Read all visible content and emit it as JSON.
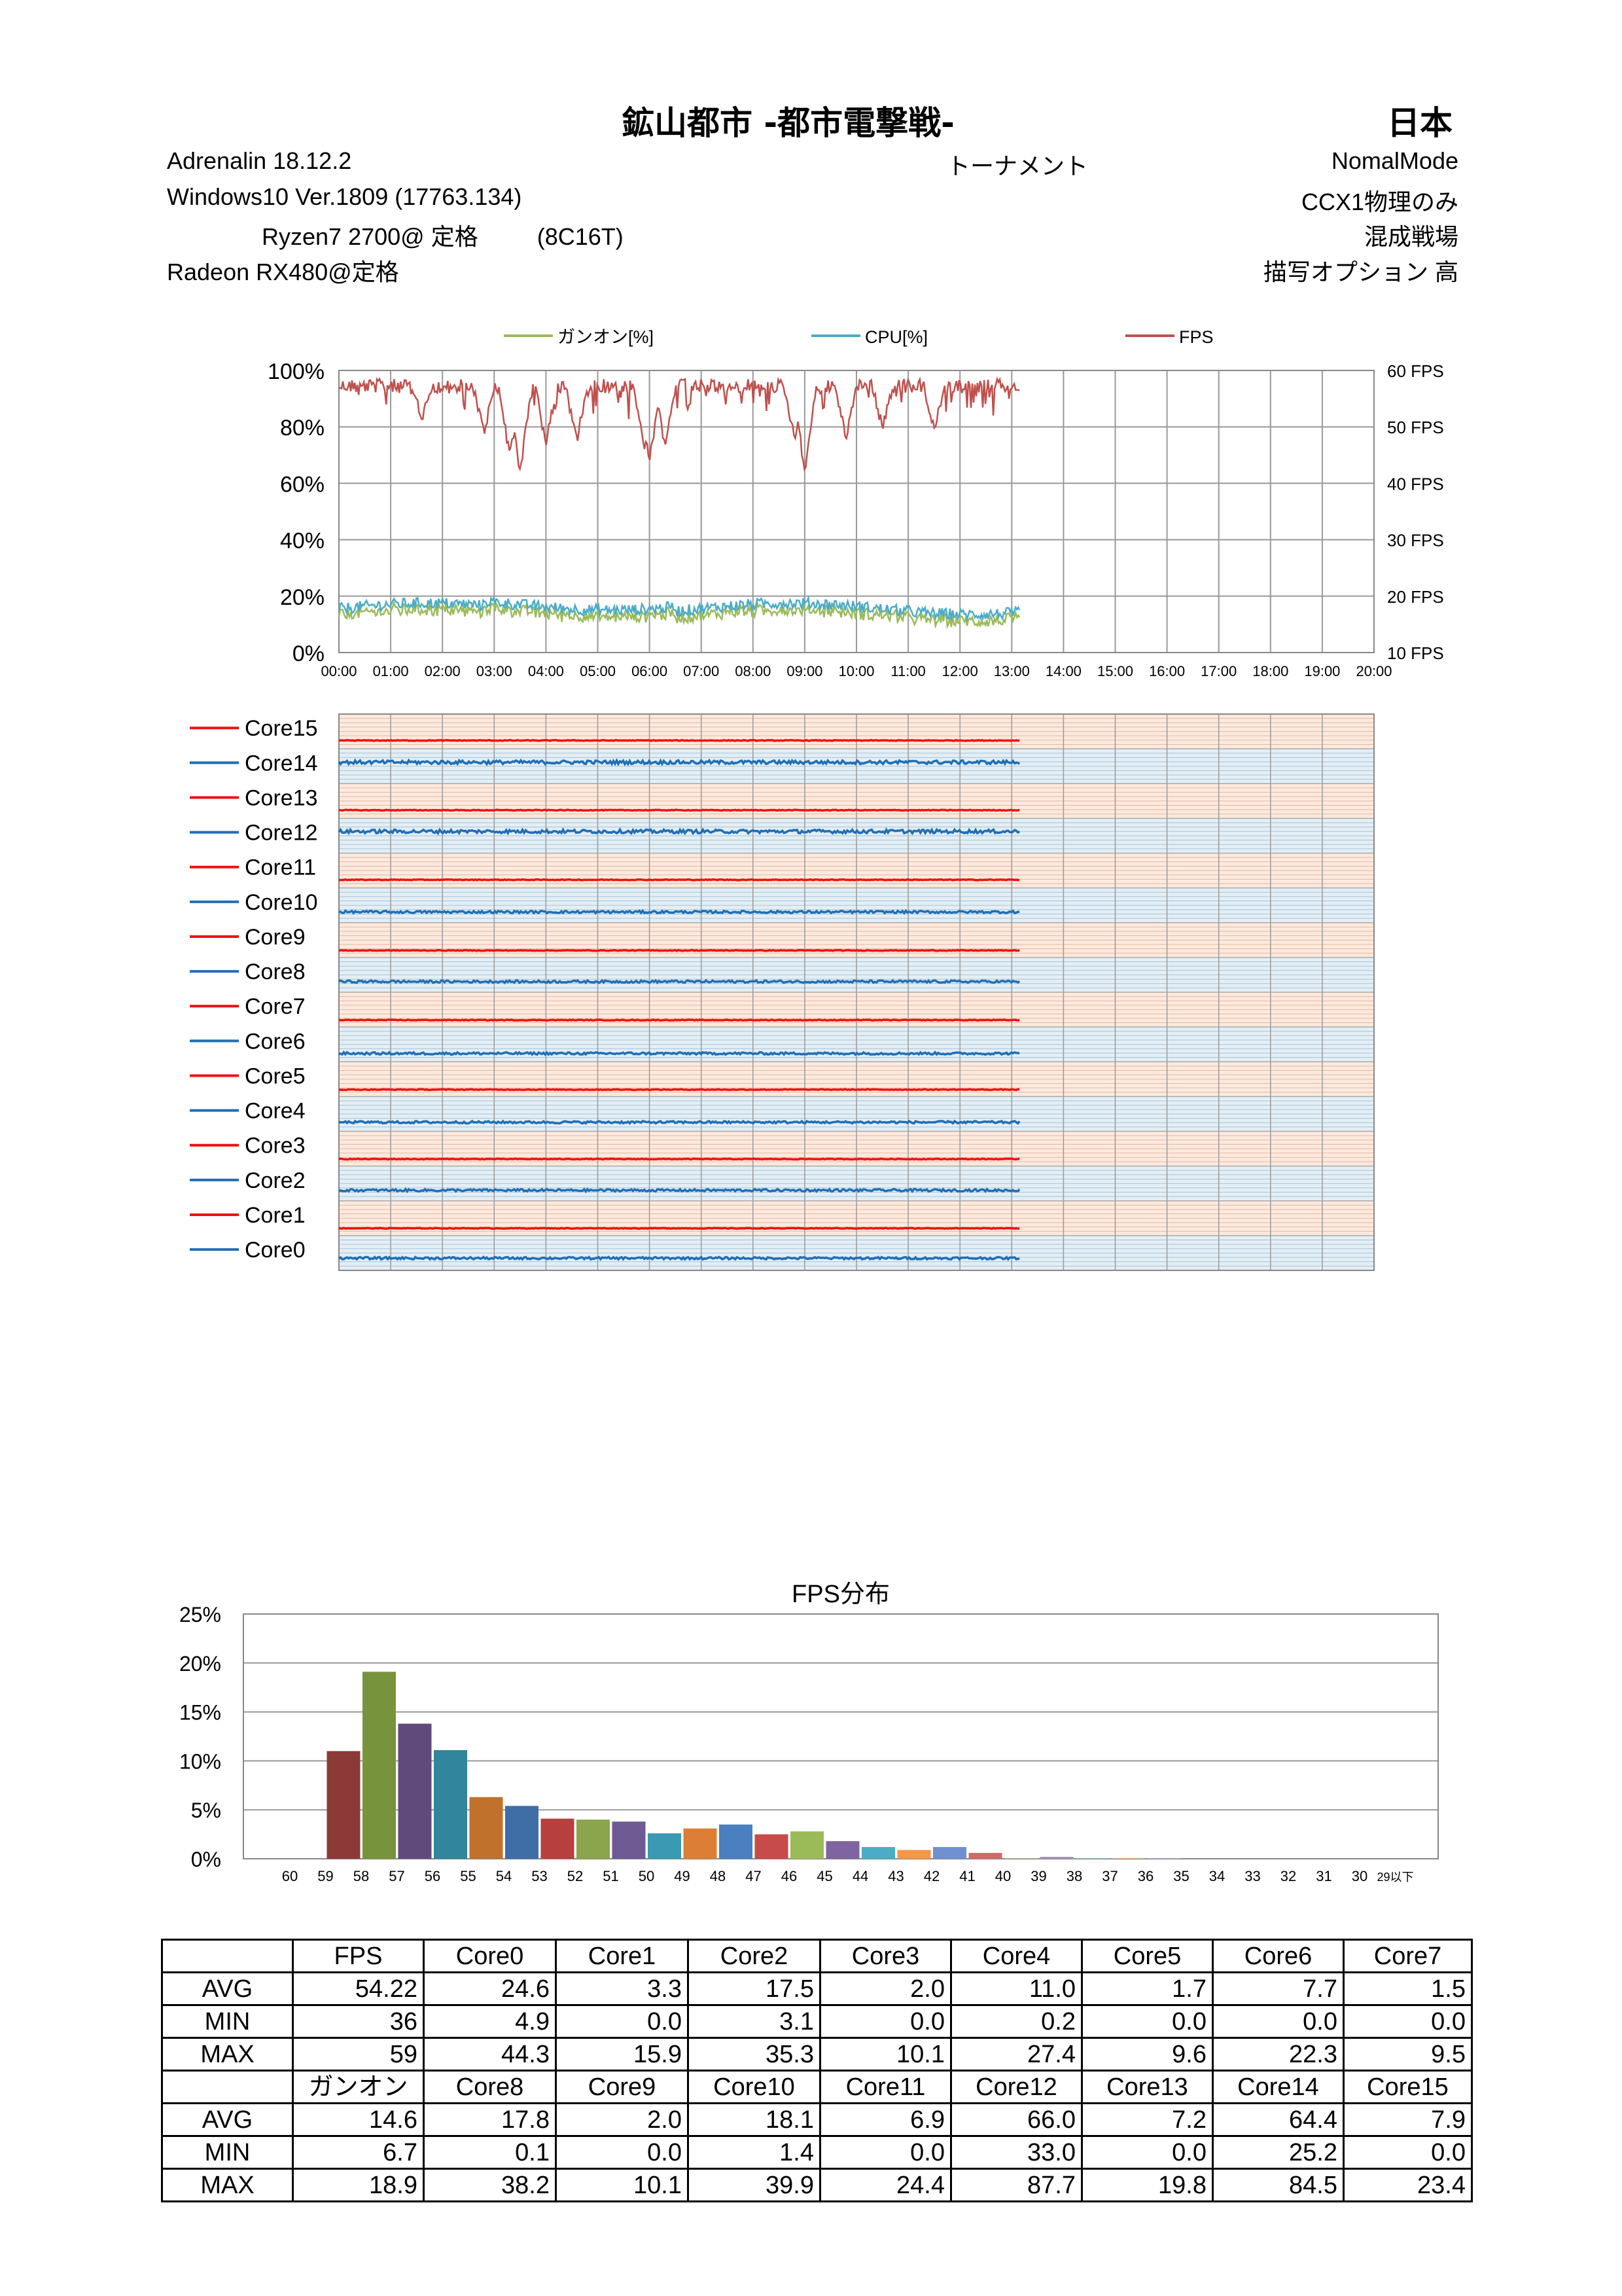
{
  "header": {
    "title": "鉱山都市 -都市電撃戦-",
    "region": "日本",
    "driver": "Adrenalin  18.12.2",
    "mode_type": "トーナメント",
    "mode": "NomalMode",
    "os": "Windows10  Ver.1809 (17763.134)",
    "ccx": "CCX1物理のみ",
    "cpu": "Ryzen7 2700@ 定格         (8C16T)",
    "battlefield": "混成戦場",
    "gpu": "Radeon RX480@定格",
    "quality": "描写オプション  高"
  },
  "colors": {
    "ganon": "#9bbb59",
    "cpu": "#4bacc6",
    "fps": "#c0504d",
    "core_red": "#ee1111",
    "core_blue": "#1f6fb5",
    "band_red": "#fce9de",
    "band_blue": "#e3eef5"
  },
  "chart_data": [
    {
      "type": "line",
      "legend": [
        "ガンオン[%]",
        "CPU[%]",
        "FPS"
      ],
      "x_ticks": [
        "00:00",
        "01:00",
        "02:00",
        "03:00",
        "04:00",
        "05:00",
        "06:00",
        "07:00",
        "08:00",
        "09:00",
        "10:00",
        "11:00",
        "12:00",
        "13:00",
        "14:00",
        "15:00",
        "16:00",
        "17:00",
        "18:00",
        "19:00",
        "20:00"
      ],
      "y_left_ticks": [
        "100%",
        "80%",
        "60%",
        "40%",
        "20%",
        "0%"
      ],
      "y_right_ticks": [
        "60 FPS",
        "50 FPS",
        "40 FPS",
        "30 FPS",
        "20 FPS",
        "10 FPS"
      ],
      "ylim_left": [
        0,
        100
      ],
      "ylim_right": [
        10,
        60
      ],
      "x_range_minutes": [
        0,
        20
      ],
      "data_end_minutes": 13.15,
      "series": [
        {
          "name": "ガンオン[%]",
          "axis": "left",
          "avg": 14.6,
          "min": 6.7,
          "max": 18.9
        },
        {
          "name": "CPU[%]",
          "axis": "left",
          "avg": 16.5,
          "min": 10,
          "max": 22
        },
        {
          "name": "FPS",
          "axis": "right",
          "avg": 54.22,
          "min": 36,
          "max": 59
        }
      ]
    },
    {
      "type": "line",
      "cores": [
        "Core15",
        "Core14",
        "Core13",
        "Core12",
        "Core11",
        "Core10",
        "Core9",
        "Core8",
        "Core7",
        "Core6",
        "Core5",
        "Core4",
        "Core3",
        "Core2",
        "Core1",
        "Core0"
      ],
      "core_avg": [
        7.9,
        64.4,
        7.2,
        66.0,
        6.9,
        18.1,
        2.0,
        17.8,
        1.5,
        7.7,
        1.7,
        11.0,
        2.0,
        17.5,
        3.3,
        24.6
      ],
      "x_ticks": [
        "00:00",
        "01:00",
        "02:00",
        "03:00",
        "04:00",
        "05:00",
        "06:00",
        "07:00",
        "08:00",
        "09:00",
        "10:00",
        "11:00",
        "12:00",
        "13:00",
        "14:00",
        "15:00",
        "16:00",
        "17:00",
        "18:00",
        "19:00",
        "20:00"
      ],
      "x_range_minutes": [
        0,
        20
      ],
      "data_end_minutes": 13.15
    },
    {
      "type": "bar",
      "title": "FPS分布",
      "categories": [
        "60",
        "59",
        "58",
        "57",
        "56",
        "55",
        "54",
        "53",
        "52",
        "51",
        "50",
        "49",
        "48",
        "47",
        "46",
        "45",
        "44",
        "43",
        "42",
        "41",
        "40",
        "39",
        "38",
        "37",
        "36",
        "35",
        "34",
        "33",
        "32",
        "31",
        "30",
        "29以下"
      ],
      "values": [
        0,
        11.0,
        19.1,
        13.8,
        11.1,
        6.3,
        5.4,
        4.1,
        4.0,
        3.8,
        2.6,
        3.1,
        3.5,
        2.5,
        2.8,
        1.8,
        1.2,
        0.9,
        1.2,
        0.6,
        0.05,
        0.2,
        0.05,
        0.05,
        0.05,
        0,
        0,
        0,
        0,
        0,
        0,
        0
      ],
      "bar_colors": [
        "#c0504d",
        "#8b3a38",
        "#77933c",
        "#604a7b",
        "#31859c",
        "#c0712b",
        "#3f6ea6",
        "#b5403d",
        "#8aa54a",
        "#705a93",
        "#3a9ab3",
        "#dc7f35",
        "#4a7fc0",
        "#c74b48",
        "#9bbb59",
        "#8064a2",
        "#4bacc6",
        "#f79646",
        "#6f8fd0",
        "#d06a67",
        "#b4c98a",
        "#a493c0",
        "#85c7d7",
        "#f9b47c",
        "#9fb8e0",
        "#e8a5a3",
        "#c9d8ae",
        "#c3b7d7",
        "#b0dbe5",
        "#fbcdaa",
        "#c6d4ee",
        "#f2c6c5"
      ],
      "y_ticks": [
        "25%",
        "20%",
        "15%",
        "10%",
        "5%",
        "0%"
      ],
      "ylim": [
        0,
        25
      ]
    }
  ],
  "stats": {
    "block1": {
      "headers": [
        "FPS",
        "Core0",
        "Core1",
        "Core2",
        "Core3",
        "Core4",
        "Core5",
        "Core6",
        "Core7"
      ],
      "rows": [
        {
          "label": "AVG",
          "values": [
            "54.22",
            "24.6",
            "3.3",
            "17.5",
            "2.0",
            "11.0",
            "1.7",
            "7.7",
            "1.5"
          ]
        },
        {
          "label": "MIN",
          "values": [
            "36",
            "4.9",
            "0.0",
            "3.1",
            "0.0",
            "0.2",
            "0.0",
            "0.0",
            "0.0"
          ]
        },
        {
          "label": "MAX",
          "values": [
            "59",
            "44.3",
            "15.9",
            "35.3",
            "10.1",
            "27.4",
            "9.6",
            "22.3",
            "9.5"
          ]
        }
      ]
    },
    "block2": {
      "headers": [
        "ガンオン",
        "Core8",
        "Core9",
        "Core10",
        "Core11",
        "Core12",
        "Core13",
        "Core14",
        "Core15"
      ],
      "rows": [
        {
          "label": "AVG",
          "values": [
            "14.6",
            "17.8",
            "2.0",
            "18.1",
            "6.9",
            "66.0",
            "7.2",
            "64.4",
            "7.9"
          ]
        },
        {
          "label": "MIN",
          "values": [
            "6.7",
            "0.1",
            "0.0",
            "1.4",
            "0.0",
            "33.0",
            "0.0",
            "25.2",
            "0.0"
          ]
        },
        {
          "label": "MAX",
          "values": [
            "18.9",
            "38.2",
            "10.1",
            "39.9",
            "24.4",
            "87.7",
            "19.8",
            "84.5",
            "23.4"
          ]
        }
      ]
    }
  }
}
